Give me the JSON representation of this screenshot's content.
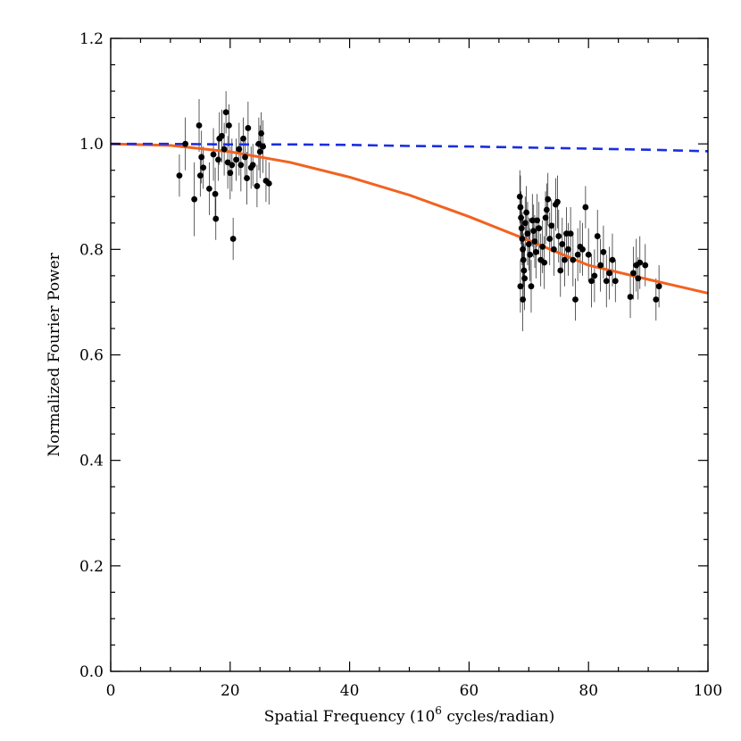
{
  "chart_data": {
    "type": "scatter",
    "xlabel_pre": "Spatial Frequency (10",
    "xlabel_sup": "6",
    "xlabel_post": " cycles/radian)",
    "ylabel": "Normalized Fourier Power",
    "xlim": [
      0,
      100
    ],
    "ylim": [
      0.0,
      1.2
    ],
    "x_ticks": [
      0,
      20,
      40,
      60,
      80,
      100
    ],
    "x_tick_labels": [
      "0",
      "20",
      "40",
      "60",
      "80",
      "100"
    ],
    "y_ticks": [
      0.0,
      0.2,
      0.4,
      0.6,
      0.8,
      1.0,
      1.2
    ],
    "y_tick_labels": [
      "0.0",
      "0.2",
      "0.4",
      "0.6",
      "0.8",
      "1.0",
      "1.2"
    ],
    "grid": false,
    "colors": {
      "points": "#000000",
      "solid_model": "#f2621f",
      "dashed_model": "#1a2ee0"
    },
    "models": [
      {
        "style": "solid",
        "color": "#f2621f",
        "x": [
          0,
          10,
          20,
          30,
          40,
          50,
          60,
          70,
          80,
          90,
          100
        ],
        "y": [
          1.0,
          0.997,
          0.985,
          0.965,
          0.937,
          0.903,
          0.862,
          0.817,
          0.77,
          0.743,
          0.717
        ]
      },
      {
        "style": "dashed",
        "color": "#1a2ee0",
        "x": [
          0,
          10,
          20,
          30,
          40,
          50,
          60,
          70,
          80,
          90,
          100
        ],
        "y": [
          1.0,
          1.0,
          0.999,
          0.999,
          0.998,
          0.996,
          0.995,
          0.993,
          0.991,
          0.989,
          0.986
        ]
      }
    ],
    "points": [
      {
        "x": 11.5,
        "y": 0.94,
        "err": 0.04
      },
      {
        "x": 12.5,
        "y": 1.0,
        "err": 0.05
      },
      {
        "x": 14.0,
        "y": 0.895,
        "err": 0.07
      },
      {
        "x": 14.8,
        "y": 1.035,
        "err": 0.05
      },
      {
        "x": 15.0,
        "y": 0.94,
        "err": 0.04
      },
      {
        "x": 15.2,
        "y": 0.975,
        "err": 0.05
      },
      {
        "x": 15.5,
        "y": 0.955,
        "err": 0.04
      },
      {
        "x": 16.5,
        "y": 0.915,
        "err": 0.05
      },
      {
        "x": 17.2,
        "y": 0.98,
        "err": 0.05
      },
      {
        "x": 17.5,
        "y": 0.905,
        "err": 0.05
      },
      {
        "x": 17.6,
        "y": 0.858,
        "err": 0.04
      },
      {
        "x": 18.0,
        "y": 0.97,
        "err": 0.04
      },
      {
        "x": 18.2,
        "y": 1.01,
        "err": 0.05
      },
      {
        "x": 18.6,
        "y": 1.015,
        "err": 0.05
      },
      {
        "x": 19.0,
        "y": 0.99,
        "err": 0.05
      },
      {
        "x": 19.3,
        "y": 1.06,
        "err": 0.04
      },
      {
        "x": 19.6,
        "y": 0.965,
        "err": 0.05
      },
      {
        "x": 19.8,
        "y": 1.035,
        "err": 0.04
      },
      {
        "x": 20.0,
        "y": 0.945,
        "err": 0.05
      },
      {
        "x": 20.3,
        "y": 0.96,
        "err": 0.05
      },
      {
        "x": 20.5,
        "y": 0.82,
        "err": 0.04
      },
      {
        "x": 21.0,
        "y": 0.97,
        "err": 0.04
      },
      {
        "x": 21.5,
        "y": 0.99,
        "err": 0.05
      },
      {
        "x": 21.8,
        "y": 0.96,
        "err": 0.05
      },
      {
        "x": 22.2,
        "y": 1.01,
        "err": 0.04
      },
      {
        "x": 22.5,
        "y": 0.975,
        "err": 0.04
      },
      {
        "x": 22.8,
        "y": 0.935,
        "err": 0.05
      },
      {
        "x": 23.0,
        "y": 1.03,
        "err": 0.05
      },
      {
        "x": 23.5,
        "y": 0.955,
        "err": 0.04
      },
      {
        "x": 23.8,
        "y": 0.96,
        "err": 0.04
      },
      {
        "x": 24.5,
        "y": 0.92,
        "err": 0.04
      },
      {
        "x": 24.8,
        "y": 1.0,
        "err": 0.05
      },
      {
        "x": 25.0,
        "y": 0.985,
        "err": 0.05
      },
      {
        "x": 25.2,
        "y": 1.02,
        "err": 0.04
      },
      {
        "x": 25.5,
        "y": 0.995,
        "err": 0.05
      },
      {
        "x": 26.0,
        "y": 0.93,
        "err": 0.04
      },
      {
        "x": 26.5,
        "y": 0.925,
        "err": 0.04
      },
      {
        "x": 68.5,
        "y": 0.9,
        "err": 0.05
      },
      {
        "x": 68.6,
        "y": 0.88,
        "err": 0.06
      },
      {
        "x": 68.7,
        "y": 0.86,
        "err": 0.05
      },
      {
        "x": 68.8,
        "y": 0.84,
        "err": 0.06
      },
      {
        "x": 68.9,
        "y": 0.82,
        "err": 0.05
      },
      {
        "x": 69.0,
        "y": 0.8,
        "err": 0.06
      },
      {
        "x": 69.1,
        "y": 0.78,
        "err": 0.05
      },
      {
        "x": 69.2,
        "y": 0.76,
        "err": 0.05
      },
      {
        "x": 69.3,
        "y": 0.745,
        "err": 0.06
      },
      {
        "x": 68.6,
        "y": 0.73,
        "err": 0.05
      },
      {
        "x": 69.0,
        "y": 0.705,
        "err": 0.06
      },
      {
        "x": 69.4,
        "y": 0.85,
        "err": 0.05
      },
      {
        "x": 69.6,
        "y": 0.87,
        "err": 0.05
      },
      {
        "x": 69.8,
        "y": 0.83,
        "err": 0.06
      },
      {
        "x": 70.0,
        "y": 0.81,
        "err": 0.05
      },
      {
        "x": 70.2,
        "y": 0.79,
        "err": 0.05
      },
      {
        "x": 70.4,
        "y": 0.73,
        "err": 0.05
      },
      {
        "x": 70.6,
        "y": 0.855,
        "err": 0.05
      },
      {
        "x": 70.8,
        "y": 0.835,
        "err": 0.05
      },
      {
        "x": 71.0,
        "y": 0.815,
        "err": 0.05
      },
      {
        "x": 71.2,
        "y": 0.795,
        "err": 0.05
      },
      {
        "x": 71.4,
        "y": 0.855,
        "err": 0.05
      },
      {
        "x": 71.7,
        "y": 0.84,
        "err": 0.05
      },
      {
        "x": 72.0,
        "y": 0.78,
        "err": 0.05
      },
      {
        "x": 72.3,
        "y": 0.805,
        "err": 0.05
      },
      {
        "x": 72.6,
        "y": 0.775,
        "err": 0.05
      },
      {
        "x": 72.8,
        "y": 0.86,
        "err": 0.05
      },
      {
        "x": 73.0,
        "y": 0.875,
        "err": 0.05
      },
      {
        "x": 73.2,
        "y": 0.895,
        "err": 0.05
      },
      {
        "x": 73.5,
        "y": 0.82,
        "err": 0.05
      },
      {
        "x": 73.8,
        "y": 0.845,
        "err": 0.05
      },
      {
        "x": 74.2,
        "y": 0.8,
        "err": 0.05
      },
      {
        "x": 74.5,
        "y": 0.885,
        "err": 0.05
      },
      {
        "x": 74.8,
        "y": 0.89,
        "err": 0.05
      },
      {
        "x": 75.0,
        "y": 0.825,
        "err": 0.05
      },
      {
        "x": 75.3,
        "y": 0.76,
        "err": 0.05
      },
      {
        "x": 75.6,
        "y": 0.81,
        "err": 0.05
      },
      {
        "x": 76.0,
        "y": 0.78,
        "err": 0.05
      },
      {
        "x": 76.3,
        "y": 0.83,
        "err": 0.05
      },
      {
        "x": 76.6,
        "y": 0.8,
        "err": 0.05
      },
      {
        "x": 77.0,
        "y": 0.83,
        "err": 0.05
      },
      {
        "x": 77.4,
        "y": 0.78,
        "err": 0.05
      },
      {
        "x": 77.8,
        "y": 0.705,
        "err": 0.04
      },
      {
        "x": 78.2,
        "y": 0.79,
        "err": 0.05
      },
      {
        "x": 78.6,
        "y": 0.805,
        "err": 0.05
      },
      {
        "x": 79.0,
        "y": 0.8,
        "err": 0.05
      },
      {
        "x": 79.5,
        "y": 0.88,
        "err": 0.04
      },
      {
        "x": 80.0,
        "y": 0.79,
        "err": 0.05
      },
      {
        "x": 80.5,
        "y": 0.74,
        "err": 0.05
      },
      {
        "x": 81.0,
        "y": 0.75,
        "err": 0.05
      },
      {
        "x": 81.5,
        "y": 0.825,
        "err": 0.05
      },
      {
        "x": 82.0,
        "y": 0.77,
        "err": 0.05
      },
      {
        "x": 82.5,
        "y": 0.795,
        "err": 0.05
      },
      {
        "x": 83.0,
        "y": 0.74,
        "err": 0.05
      },
      {
        "x": 83.5,
        "y": 0.755,
        "err": 0.05
      },
      {
        "x": 84.0,
        "y": 0.78,
        "err": 0.05
      },
      {
        "x": 84.5,
        "y": 0.74,
        "err": 0.04
      },
      {
        "x": 87.0,
        "y": 0.71,
        "err": 0.04
      },
      {
        "x": 87.5,
        "y": 0.755,
        "err": 0.05
      },
      {
        "x": 88.0,
        "y": 0.77,
        "err": 0.05
      },
      {
        "x": 88.3,
        "y": 0.745,
        "err": 0.04
      },
      {
        "x": 88.6,
        "y": 0.775,
        "err": 0.05
      },
      {
        "x": 89.5,
        "y": 0.77,
        "err": 0.04
      },
      {
        "x": 91.3,
        "y": 0.705,
        "err": 0.04
      },
      {
        "x": 91.8,
        "y": 0.73,
        "err": 0.04
      }
    ]
  }
}
